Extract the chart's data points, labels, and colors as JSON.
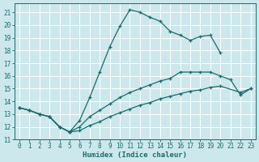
{
  "xlabel": "Humidex (Indice chaleur)",
  "bg_color": "#cce8ec",
  "grid_color": "#ffffff",
  "line_color": "#1a6b6b",
  "xlim": [
    -0.5,
    23.5
  ],
  "ylim": [
    11,
    21.7
  ],
  "yticks": [
    11,
    12,
    13,
    14,
    15,
    16,
    17,
    18,
    19,
    20,
    21
  ],
  "xticks": [
    0,
    1,
    2,
    3,
    4,
    5,
    6,
    7,
    8,
    9,
    10,
    11,
    12,
    13,
    14,
    15,
    16,
    17,
    18,
    19,
    20,
    21,
    22,
    23
  ],
  "line1_x": [
    0,
    1,
    2,
    3,
    4,
    5,
    6,
    7,
    8,
    9,
    10,
    11,
    12,
    13,
    14,
    15,
    16,
    17,
    18,
    19,
    20
  ],
  "line1_y": [
    13.5,
    13.3,
    13.0,
    12.8,
    12.0,
    11.6,
    12.5,
    14.3,
    16.3,
    18.3,
    19.9,
    21.2,
    21.0,
    20.6,
    20.3,
    19.5,
    19.2,
    18.8,
    19.1,
    19.2,
    17.8
  ],
  "line2_x": [
    0,
    1,
    2,
    3,
    4,
    5,
    6,
    7,
    8,
    9,
    10,
    11,
    12,
    13,
    14,
    15,
    16,
    17,
    18,
    19,
    20,
    21,
    22,
    23
  ],
  "line2_y": [
    13.5,
    13.3,
    13.0,
    12.8,
    12.0,
    11.6,
    12.0,
    12.8,
    13.3,
    13.8,
    14.3,
    14.7,
    15.0,
    15.3,
    15.6,
    15.8,
    16.3,
    16.3,
    16.3,
    16.3,
    16.0,
    15.7,
    14.5,
    15.0
  ],
  "line3_x": [
    0,
    1,
    2,
    3,
    4,
    5,
    6,
    7,
    8,
    9,
    10,
    11,
    12,
    13,
    14,
    15,
    16,
    17,
    18,
    19,
    20,
    22,
    23
  ],
  "line3_y": [
    13.5,
    13.3,
    13.0,
    12.8,
    12.0,
    11.6,
    11.7,
    12.1,
    12.4,
    12.8,
    13.1,
    13.4,
    13.7,
    13.9,
    14.2,
    14.4,
    14.6,
    14.8,
    14.9,
    15.1,
    15.2,
    14.7,
    15.0
  ]
}
